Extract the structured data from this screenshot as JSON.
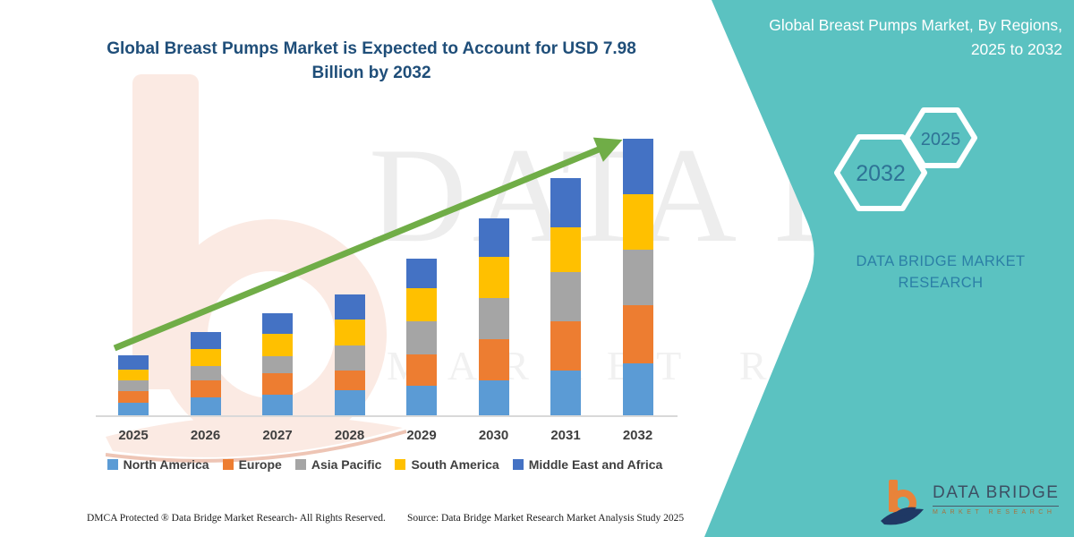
{
  "header": {
    "title": "Global Breast Pumps Market is Expected to Account for USD 7.98 Billion by 2032"
  },
  "side_panel": {
    "title": "Global Breast Pumps Market, By Regions, 2025 to 2032",
    "hexagon_back": "2032",
    "hexagon_front": "2025",
    "brand_text": "DATA BRIDGE MARKET RESEARCH"
  },
  "watermark": {
    "brand": "DATA BRIDGE",
    "sub": "MARKET RESEARCH"
  },
  "chart_data": {
    "type": "bar",
    "stacked": true,
    "title": "Global Breast Pumps Market is Expected to Account for USD 7.98 Billion by 2032",
    "unit": "USD Billion",
    "categories": [
      "2025",
      "2026",
      "2027",
      "2028",
      "2029",
      "2030",
      "2031",
      "2032"
    ],
    "series": [
      {
        "name": "North America",
        "color": "#5B9BD5",
        "values": [
          0.37,
          0.52,
          0.59,
          0.72,
          0.86,
          1.0,
          1.29,
          1.5
        ]
      },
      {
        "name": "Europe",
        "color": "#ED7D31",
        "values": [
          0.34,
          0.5,
          0.62,
          0.56,
          0.9,
          1.2,
          1.42,
          1.68
        ]
      },
      {
        "name": "Asia Pacific",
        "color": "#A5A5A5",
        "values": [
          0.3,
          0.39,
          0.5,
          0.73,
          0.95,
          1.19,
          1.42,
          1.6
        ]
      },
      {
        "name": "South America",
        "color": "#FFC000",
        "values": [
          0.3,
          0.49,
          0.65,
          0.75,
          0.95,
          1.19,
          1.29,
          1.6
        ]
      },
      {
        "name": "Middle East and Africa",
        "color": "#4472C4",
        "values": [
          0.41,
          0.5,
          0.58,
          0.72,
          0.86,
          1.1,
          1.42,
          1.6
        ]
      }
    ],
    "totals": [
      1.72,
      2.4,
      2.94,
      3.48,
      4.52,
      5.68,
      6.84,
      7.98
    ],
    "ylim": [
      0,
      8.5
    ],
    "grid": false,
    "legend_position": "bottom",
    "annotation": {
      "type": "trend-arrow",
      "color": "#70AD47"
    }
  },
  "footer": {
    "dmca": "DMCA Protected ® Data Bridge Market Research-  All Rights Reserved.",
    "source": "Source: Data Bridge Market Research  Market Analysis Study 2025"
  },
  "logo": {
    "title": "DATA BRIDGE",
    "subtitle": "MARKET RESEARCH"
  },
  "colors": {
    "panel_teal": "#5BC2C1",
    "title_blue": "#1F4E79",
    "arrow_green": "#70AD47",
    "axis_gray": "#D9D9D9",
    "label_gray": "#3F3F3F",
    "hexagon_text": "#2E7396",
    "panel_brand_text": "#2B7FA6",
    "logo_navy": "#1F3864",
    "logo_orange": "#E8833A"
  }
}
